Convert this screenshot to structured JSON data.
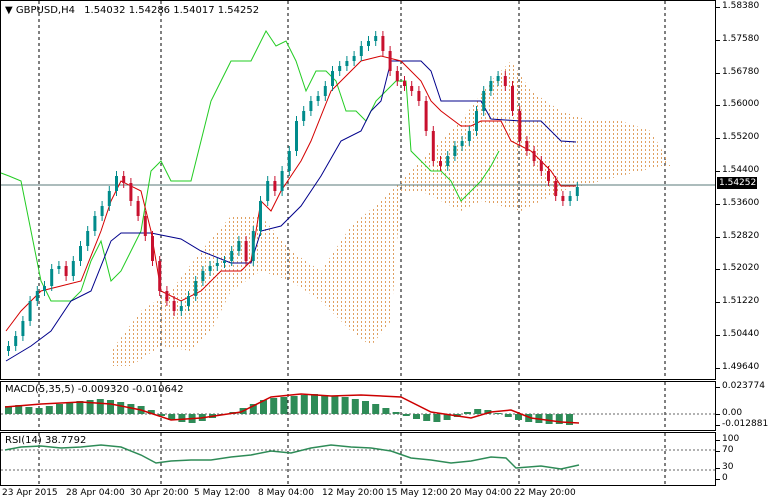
{
  "main": {
    "symbol_label": "GBPUSD,H4",
    "ohlc": "1.54032 1.54286 1.54017 1.54252",
    "price_ticks": [
      "1.58380",
      "1.57580",
      "1.56780",
      "1.56000",
      "1.55200",
      "1.54400",
      "1.53600",
      "1.52820",
      "1.52020",
      "1.51220",
      "1.50440",
      "1.49640"
    ],
    "current_price": "1.54252",
    "colors": {
      "tenkan": "#d40000",
      "kijun": "#00008b",
      "chikou": "#22cc22",
      "cloud": "#e0a060",
      "bull": "#008b8b",
      "bear": "#c8102e"
    }
  },
  "macd": {
    "label": "MACD(5,35,5)",
    "values": "-0.009320 -0.010642",
    "ticks": [
      "0.023774",
      "0.00",
      "-0.012881"
    ],
    "colors": {
      "hist": "#2e8b57",
      "signal": "#cc0000"
    }
  },
  "rsi": {
    "label": "RSI(14) 38.7792",
    "ticks": [
      "100",
      "70",
      "30",
      "0"
    ],
    "color": "#2e8b57"
  },
  "time_labels": [
    "23 Apr 2015",
    "28 Apr 04:00",
    "30 Apr 20:00",
    "5 May 12:00",
    "8 May 04:00",
    "12 May 20:00",
    "15 May 12:00",
    "20 May 04:00",
    "22 May 20:00"
  ]
}
